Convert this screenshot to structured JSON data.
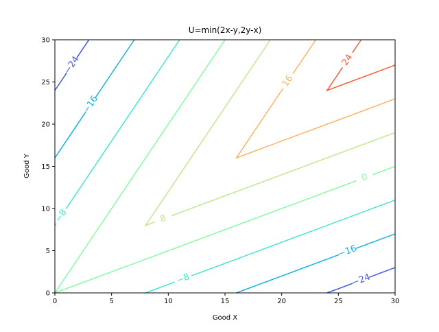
{
  "chart_data": {
    "type": "contour",
    "title": "U=min(2x-y,2y-x)",
    "x_label": "Good X",
    "y_label": "Good Y",
    "xlim": [
      0,
      30
    ],
    "ylim": [
      0,
      30
    ],
    "xticks": [
      0,
      5,
      10,
      15,
      20,
      25,
      30
    ],
    "yticks": [
      0,
      5,
      10,
      15,
      20,
      25,
      30
    ],
    "contours": [
      {
        "level": -24,
        "label": "−24",
        "color": "#4256e8",
        "x": [
          0,
          3,
          null,
          24,
          30
        ],
        "y": [
          24,
          30,
          null,
          0,
          3
        ]
      },
      {
        "level": -16,
        "label": "−16",
        "color": "#12b2e6",
        "x": [
          0,
          7,
          null,
          16,
          30
        ],
        "y": [
          16,
          30,
          null,
          0,
          7
        ]
      },
      {
        "level": -8,
        "label": "−8",
        "color": "#42e6d0",
        "x": [
          0,
          11,
          null,
          8,
          30
        ],
        "y": [
          8,
          30,
          null,
          0,
          11
        ]
      },
      {
        "level": 0,
        "label": "0",
        "color": "#86fca2",
        "x": [
          15,
          0,
          30
        ],
        "y": [
          30,
          0,
          15
        ]
      },
      {
        "level": 8,
        "label": "8",
        "color": "#c2e88c",
        "x": [
          19,
          8,
          30
        ],
        "y": [
          30,
          8,
          19
        ]
      },
      {
        "level": 16,
        "label": "16",
        "color": "#ffb25e",
        "x": [
          23,
          16,
          30
        ],
        "y": [
          30,
          16,
          23
        ]
      },
      {
        "level": 24,
        "label": "24",
        "color": "#ff5a30",
        "x": [
          27,
          24,
          30
        ],
        "y": [
          30,
          24,
          27
        ]
      }
    ]
  }
}
